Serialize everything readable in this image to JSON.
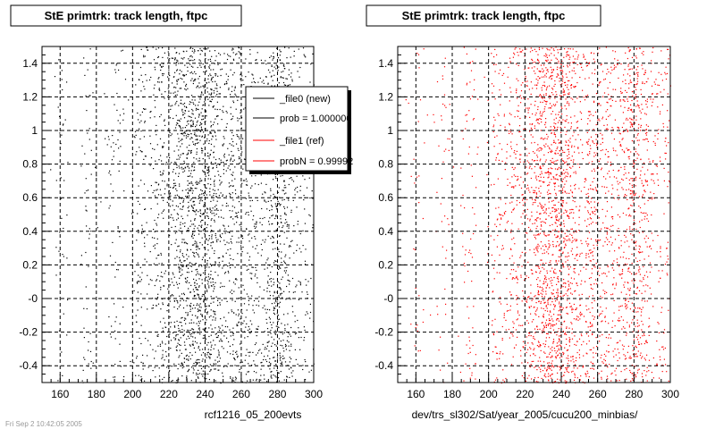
{
  "chart_data": [
    {
      "type": "scatter",
      "title": "StE primtrk: track length, ftpc",
      "xlabel": "rcf1216_05_200evts",
      "ylabel": "",
      "xlim": [
        150,
        300
      ],
      "ylim": [
        -0.5,
        1.5
      ],
      "x_ticks": [
        "160",
        "180",
        "200",
        "220",
        "240",
        "260",
        "280",
        "300"
      ],
      "y_ticks": [
        "-0.4",
        "-0.2",
        "-0",
        "0.2",
        "0.4",
        "0.6",
        "0.8",
        "1",
        "1.2",
        "1.4"
      ],
      "grid": true,
      "marker_color": "#000000",
      "series": [
        {
          "name": "_file0 (new)",
          "density_profile": {
            "x_centers": [
              160,
              175,
              190,
              205,
              215,
              225,
              232,
              238,
              245,
              255,
              265,
              275,
              282,
              290,
              298
            ],
            "relative_density": [
              0.1,
              0.15,
              0.2,
              0.35,
              0.55,
              0.9,
              1.0,
              1.0,
              0.95,
              0.7,
              0.6,
              0.65,
              0.8,
              0.35,
              0.2
            ]
          }
        }
      ],
      "legend": {
        "position": "top-right",
        "entries": [
          {
            "label": "_file0 (new)",
            "color": "#000000"
          },
          {
            "label": "prob = 1.000000",
            "color": "#000000"
          },
          {
            "label": "_file1 (ref)",
            "color": "#ff0000"
          },
          {
            "label": "probN = 0.99992",
            "color": "#ff0000"
          }
        ]
      }
    },
    {
      "type": "scatter",
      "title": "StE primtrk: track length, ftpc",
      "xlabel": "dev/trs_sl302/Sat/year_2005/cucu200_minbias/",
      "ylabel": "",
      "xlim": [
        150,
        300
      ],
      "ylim": [
        -0.5,
        1.5
      ],
      "x_ticks": [
        "160",
        "180",
        "200",
        "220",
        "240",
        "260",
        "280",
        "300"
      ],
      "y_ticks": [
        "-0.4",
        "-0.2",
        "-0",
        "0.2",
        "0.4",
        "0.6",
        "0.8",
        "1",
        "1.2",
        "1.4"
      ],
      "grid": true,
      "marker_color": "#ff0000",
      "series": [
        {
          "name": "_file1 (ref)",
          "density_profile": {
            "x_centers": [
              160,
              175,
              190,
              205,
              215,
              225,
              232,
              238,
              245,
              255,
              265,
              275,
              282,
              290,
              298
            ],
            "relative_density": [
              0.08,
              0.12,
              0.2,
              0.35,
              0.55,
              0.9,
              1.0,
              1.0,
              0.95,
              0.7,
              0.6,
              0.65,
              0.8,
              0.35,
              0.2
            ]
          }
        }
      ]
    }
  ],
  "footer_text": "Fri Sep 2 10:42:05 2005"
}
